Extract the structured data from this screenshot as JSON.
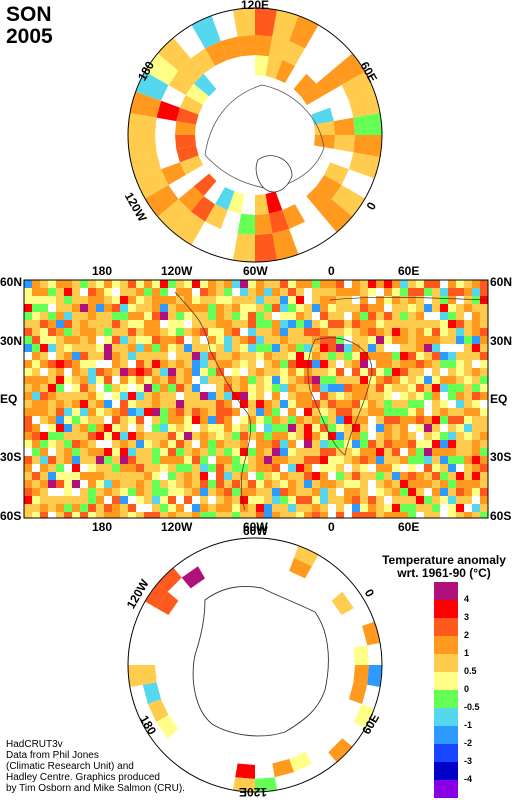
{
  "season": "SON",
  "year": "2005",
  "north_polar": {
    "labels": {
      "top": "120E",
      "left": "180",
      "right": "60E",
      "lower_left": "120W",
      "lower_right": "0"
    }
  },
  "equirect": {
    "top_labels": [
      "180",
      "120W",
      "60W",
      "0",
      "60E"
    ],
    "bottom_labels": [
      "180",
      "120W",
      "60W",
      "0",
      "60E"
    ],
    "left_labels": [
      "60N",
      "30N",
      "EQ",
      "30S",
      "60S"
    ],
    "right_labels": [
      "60N",
      "30N",
      "EQ",
      "30S",
      "60S"
    ]
  },
  "south_polar": {
    "labels": {
      "upper_left": "120W",
      "left": "180",
      "top": "60W",
      "right": "0",
      "lower_right": "60E",
      "bottom": "120E"
    }
  },
  "legend": {
    "title_line1": "Temperature anomaly",
    "title_line2": "wrt. 1961-90  (°C)",
    "bins": [
      {
        "label": "4",
        "color": "#b0107a"
      },
      {
        "label": "3",
        "color": "#ff0000"
      },
      {
        "label": "2",
        "color": "#ff5a1e"
      },
      {
        "label": "1",
        "color": "#ff9a1e"
      },
      {
        "label": "0.5",
        "color": "#ffcc4d"
      },
      {
        "label": "0",
        "color": "#ffff88"
      },
      {
        "label": "-0.5",
        "color": "#66ff55"
      },
      {
        "label": "-1",
        "color": "#55d8ee"
      },
      {
        "label": "-2",
        "color": "#2e9aff"
      },
      {
        "label": "-3",
        "color": "#1a45ff"
      },
      {
        "label": "-4",
        "color": "#0000c8"
      },
      {
        "label": "",
        "color": "#8a00e6"
      }
    ]
  },
  "credits": [
    "HadCRUT3v",
    "Data from Phil Jones",
    "(Climatic Research Unit) and",
    "Hadley Centre.  Graphics produced",
    "by Tim Osborn and Mike Salmon (CRU)."
  ]
}
